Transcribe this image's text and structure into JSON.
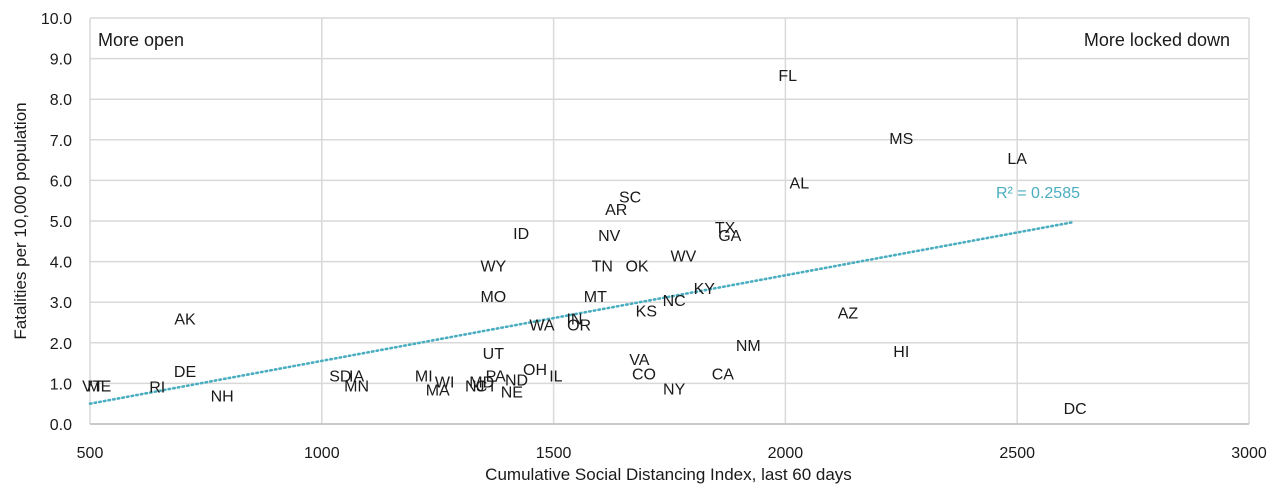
{
  "chart_data": {
    "type": "scatter",
    "xlabel": "Cumulative Social Distancing Index, last 60 days",
    "ylabel": "Fatalities per 10,000 population",
    "xlim": [
      500,
      3000
    ],
    "ylim": [
      0,
      10
    ],
    "x_ticks": [
      500,
      1000,
      1500,
      2000,
      2500,
      3000
    ],
    "y_ticks": [
      "0.0",
      "1.0",
      "2.0",
      "3.0",
      "4.0",
      "5.0",
      "6.0",
      "7.0",
      "8.0",
      "9.0",
      "10.0"
    ],
    "grid": true,
    "annotations": {
      "left": "More open",
      "right": "More locked down"
    },
    "trendline": {
      "type": "linear",
      "style": "dotted",
      "color": "#4aaec0",
      "r2_label": "R² = 0.2585",
      "x_range": [
        500,
        2620
      ],
      "y_range": [
        0.5,
        4.97
      ]
    },
    "points": [
      {
        "label": "VT",
        "x": 505,
        "y": 0.95
      },
      {
        "label": "ME",
        "x": 520,
        "y": 0.95
      },
      {
        "label": "RI",
        "x": 645,
        "y": 0.92
      },
      {
        "label": "DE",
        "x": 705,
        "y": 1.3
      },
      {
        "label": "AK",
        "x": 705,
        "y": 2.6
      },
      {
        "label": "NH",
        "x": 785,
        "y": 0.7
      },
      {
        "label": "SD",
        "x": 1040,
        "y": 1.2
      },
      {
        "label": "IA",
        "x": 1075,
        "y": 1.2
      },
      {
        "label": "MN",
        "x": 1075,
        "y": 0.95
      },
      {
        "label": "MI",
        "x": 1220,
        "y": 1.2
      },
      {
        "label": "MA",
        "x": 1250,
        "y": 0.85
      },
      {
        "label": "WI",
        "x": 1265,
        "y": 1.05
      },
      {
        "label": "NJ",
        "x": 1330,
        "y": 0.95
      },
      {
        "label": "MD",
        "x": 1345,
        "y": 1.05
      },
      {
        "label": "CT",
        "x": 1355,
        "y": 0.95
      },
      {
        "label": "PA",
        "x": 1375,
        "y": 1.2
      },
      {
        "label": "NE",
        "x": 1410,
        "y": 0.8
      },
      {
        "label": "ND",
        "x": 1420,
        "y": 1.1
      },
      {
        "label": "UT",
        "x": 1370,
        "y": 1.75
      },
      {
        "label": "MO",
        "x": 1370,
        "y": 3.15
      },
      {
        "label": "WY",
        "x": 1370,
        "y": 3.9
      },
      {
        "label": "ID",
        "x": 1430,
        "y": 4.7
      },
      {
        "label": "OH",
        "x": 1460,
        "y": 1.35
      },
      {
        "label": "WA",
        "x": 1475,
        "y": 2.45
      },
      {
        "label": "IL",
        "x": 1505,
        "y": 1.2
      },
      {
        "label": "IN",
        "x": 1545,
        "y": 2.6
      },
      {
        "label": "OR",
        "x": 1555,
        "y": 2.45
      },
      {
        "label": "MT",
        "x": 1590,
        "y": 3.15
      },
      {
        "label": "TN",
        "x": 1605,
        "y": 3.9
      },
      {
        "label": "NV",
        "x": 1620,
        "y": 4.65
      },
      {
        "label": "AR",
        "x": 1635,
        "y": 5.3
      },
      {
        "label": "SC",
        "x": 1665,
        "y": 5.6
      },
      {
        "label": "OK",
        "x": 1680,
        "y": 3.9
      },
      {
        "label": "VA",
        "x": 1685,
        "y": 1.6
      },
      {
        "label": "CO",
        "x": 1695,
        "y": 1.25
      },
      {
        "label": "KS",
        "x": 1700,
        "y": 2.8
      },
      {
        "label": "NY",
        "x": 1760,
        "y": 0.88
      },
      {
        "label": "NC",
        "x": 1760,
        "y": 3.05
      },
      {
        "label": "WV",
        "x": 1780,
        "y": 4.15
      },
      {
        "label": "KY",
        "x": 1825,
        "y": 3.35
      },
      {
        "label": "CA",
        "x": 1865,
        "y": 1.25
      },
      {
        "label": "TX",
        "x": 1870,
        "y": 4.85
      },
      {
        "label": "GA",
        "x": 1880,
        "y": 4.65
      },
      {
        "label": "NM",
        "x": 1920,
        "y": 1.95
      },
      {
        "label": "FL",
        "x": 2005,
        "y": 8.6
      },
      {
        "label": "AL",
        "x": 2030,
        "y": 5.95
      },
      {
        "label": "AZ",
        "x": 2135,
        "y": 2.75
      },
      {
        "label": "HI",
        "x": 2250,
        "y": 1.8
      },
      {
        "label": "MS",
        "x": 2250,
        "y": 7.05
      },
      {
        "label": "LA",
        "x": 2500,
        "y": 6.55
      },
      {
        "label": "DC",
        "x": 2625,
        "y": 0.4
      }
    ]
  }
}
